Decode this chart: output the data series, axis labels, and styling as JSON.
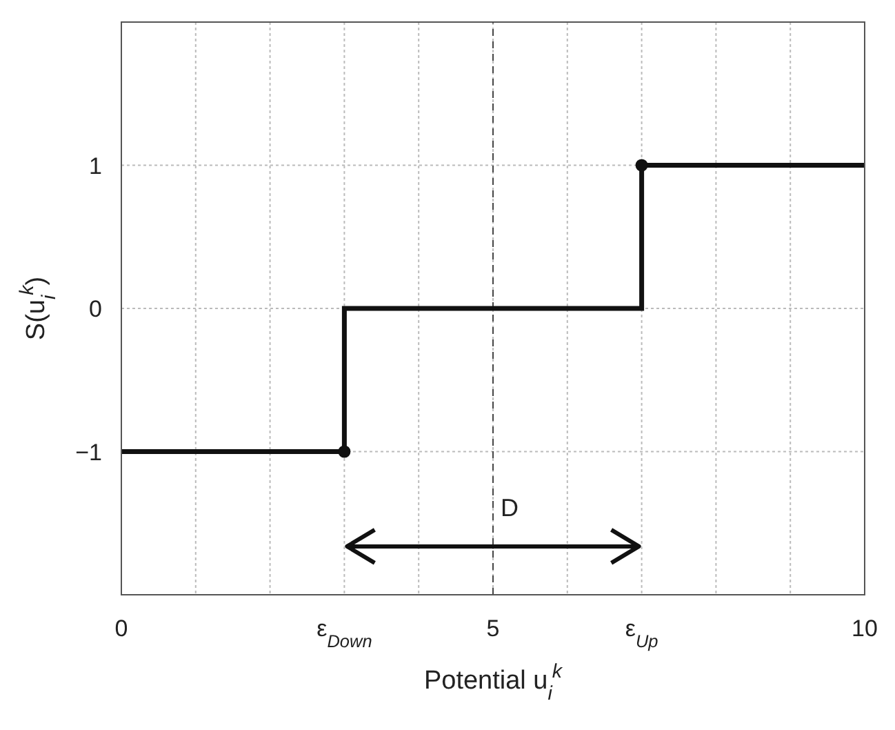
{
  "chart_data": {
    "type": "step",
    "xlabel": "Potential  u$_{i}$$^{k}$",
    "ylabel": "S(u$_{i}$$^{k}$)",
    "series": [
      {
        "type": "step",
        "color": "#111111",
        "x": [
          0,
          3,
          7,
          10
        ],
        "values": [
          -1,
          0,
          1,
          1
        ],
        "marker": "none"
      },
      {
        "type": "scatter",
        "color": "#111111",
        "x": [
          3,
          7
        ],
        "values": [
          -1,
          1
        ],
        "marker": "circle"
      }
    ],
    "xlim": [
      0,
      10
    ],
    "ylim": [
      -2,
      2
    ],
    "xticks": [
      0,
      {
        "value": 1,
        "label": null
      },
      {
        "value": 2,
        "label": null
      },
      {
        "value": 3,
        "label": "ε$_{Down}$"
      },
      {
        "value": 4,
        "label": null
      },
      5,
      {
        "value": 6,
        "label": null
      },
      {
        "value": 7,
        "label": "ε$_{Up}$"
      },
      {
        "value": 8,
        "label": null
      },
      {
        "value": 9,
        "label": null
      },
      10
    ],
    "yticks": [
      -1,
      0,
      1
    ],
    "ref_lines": [
      {
        "axis": "x",
        "value": 5,
        "color": "#444444",
        "line_style": "dashed"
      }
    ],
    "annotations": [
      {
        "text": "D",
        "x": 5,
        "y": -1.45
      }
    ],
    "grid": true
  }
}
